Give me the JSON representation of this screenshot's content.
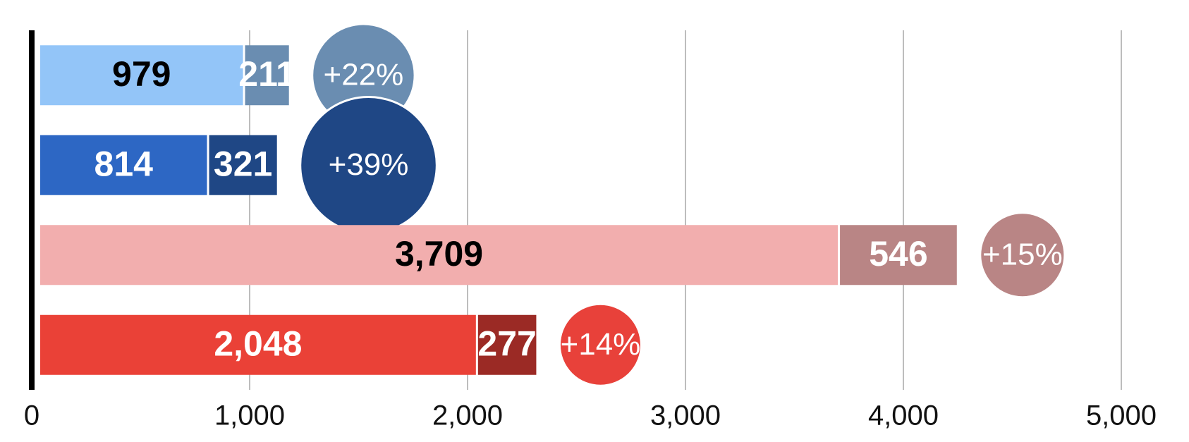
{
  "chart_data": {
    "type": "bar",
    "orientation": "horizontal",
    "stacked": true,
    "series": [
      {
        "values": [
          979,
          814,
          3709,
          2048
        ],
        "value_labels": [
          "979",
          "814",
          "3,709",
          "2,048"
        ],
        "colors": [
          "#93c5f8",
          "#2d67c4",
          "#f2aeae",
          "#ea4137"
        ]
      },
      {
        "values": [
          211,
          321,
          546,
          277
        ],
        "colors": [
          "#6a8db1",
          "#1f4785",
          "#b98585",
          "#9b2a25"
        ]
      }
    ],
    "bubbles": {
      "values": [
        22,
        39,
        15,
        14
      ],
      "value_labels": [
        "+22%",
        "+39%",
        "+15%",
        "+14%"
      ],
      "colors": [
        "#6a8db1",
        "#1f4785",
        "#b98585",
        "#e8413a"
      ]
    },
    "xlim": [
      0,
      5000
    ],
    "xticks": [
      0,
      {
        "value": 1000,
        "label": "1,000"
      },
      {
        "value": 2000,
        "label": "2,000"
      },
      {
        "value": 3000,
        "label": "3,000"
      },
      {
        "value": 4000,
        "label": "4,000"
      },
      {
        "value": 5000,
        "label": "5,000"
      }
    ],
    "grid": true
  }
}
